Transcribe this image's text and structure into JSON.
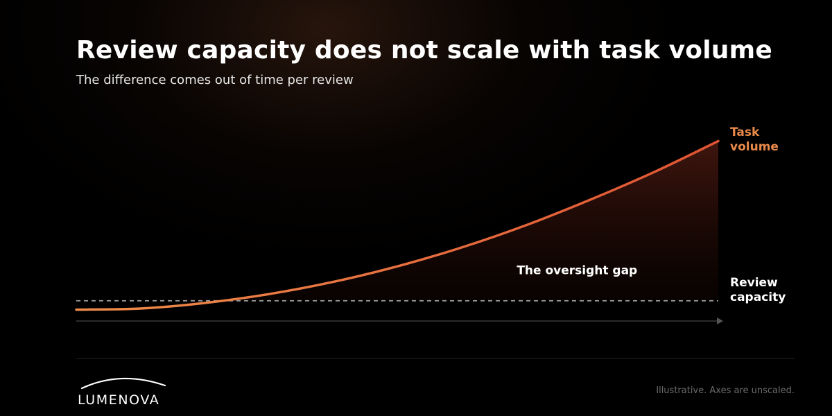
{
  "title": "Review capacity does not scale with task volume",
  "subtitle": "The difference comes out of time per review",
  "chart_data": {
    "type": "area",
    "title": "Review capacity does not scale with task volume",
    "subtitle": "The difference comes out of time per review",
    "xlabel": "",
    "ylabel": "",
    "x_range": [
      0,
      1
    ],
    "y_range": [
      0,
      1
    ],
    "grid": false,
    "axes_unscaled": true,
    "series": [
      {
        "name": "Task volume",
        "label_lines": [
          "Task",
          "volume"
        ],
        "color": "#e3603a",
        "label_color": "#e98a4a",
        "x": [
          0,
          0.1,
          0.2,
          0.3,
          0.4,
          0.5,
          0.6,
          0.7,
          0.8,
          0.9,
          1.0
        ],
        "y": [
          0.12,
          0.125,
          0.15,
          0.19,
          0.245,
          0.315,
          0.4,
          0.5,
          0.615,
          0.74,
          0.88
        ]
      },
      {
        "name": "Review capacity",
        "label_lines": [
          "Review",
          "capacity"
        ],
        "color": "#9a9a9a",
        "label_color": "#ffffff",
        "x": [
          0,
          1.0
        ],
        "y": [
          0.16,
          0.16
        ]
      }
    ],
    "annotations": [
      {
        "text": "The oversight gap",
        "x": 0.78,
        "y": 0.28
      }
    ]
  },
  "logo": {
    "text": "LUMENOVA"
  },
  "footnote": "Illustrative. Axes are unscaled."
}
